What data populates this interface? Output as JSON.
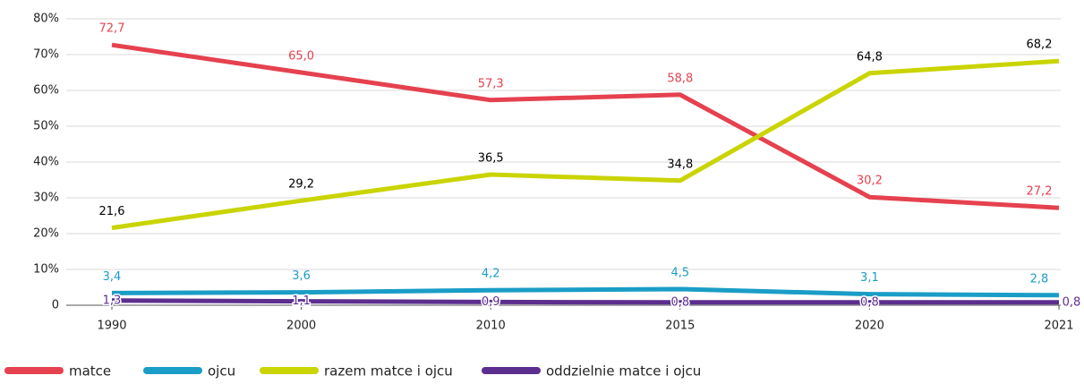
{
  "chart_data": {
    "type": "line",
    "categories": [
      "1990",
      "2000",
      "2010",
      "2015",
      "2020",
      "2021"
    ],
    "ylim": [
      0,
      80
    ],
    "yticks": [
      0,
      {
        "value": 10,
        "label": "10%"
      },
      {
        "value": 20,
        "label": "20%"
      },
      {
        "value": 30,
        "label": "30%"
      },
      {
        "value": 40,
        "label": "40%"
      },
      {
        "value": 50,
        "label": "50%"
      },
      {
        "value": 60,
        "label": "60%"
      },
      {
        "value": 70,
        "label": "70%"
      },
      {
        "value": 80,
        "label": "80%"
      }
    ],
    "grid": true,
    "legend": "bottom",
    "series": [
      {
        "name": "matce",
        "color": "#e5414f",
        "label_color": "#e5414f",
        "values": [
          72.7,
          65.0,
          57.3,
          58.8,
          30.2,
          27.2
        ],
        "value_labels": [
          "72,7",
          "65,0",
          "57,3",
          "58,8",
          "30,2",
          "27,2"
        ]
      },
      {
        "name": "ojcu",
        "color": "#1a9dc6",
        "label_color": "#1a9dc6",
        "values": [
          3.4,
          3.6,
          4.2,
          4.5,
          3.1,
          2.8
        ],
        "value_labels": [
          "3,4",
          "3,6",
          "4,2",
          "4,5",
          "3,1",
          "2,8"
        ]
      },
      {
        "name": "razem matce i ojcu",
        "color": "#c9d400",
        "label_color": "#000000",
        "values": [
          21.6,
          29.2,
          36.5,
          34.8,
          64.8,
          68.2
        ],
        "value_labels": [
          "21,6",
          "29,2",
          "36,5",
          "34,8",
          "64,8",
          "68,2"
        ]
      },
      {
        "name": "oddzielnie matce i ojcu",
        "color": "#5c2e8e",
        "label_color": "#5c2e8e",
        "values": [
          1.3,
          1.1,
          0.9,
          0.8,
          0.8,
          0.8
        ],
        "value_labels": [
          "1,3",
          "1,1",
          "0,9",
          "0,8",
          "0,8",
          "0,8"
        ]
      }
    ]
  }
}
